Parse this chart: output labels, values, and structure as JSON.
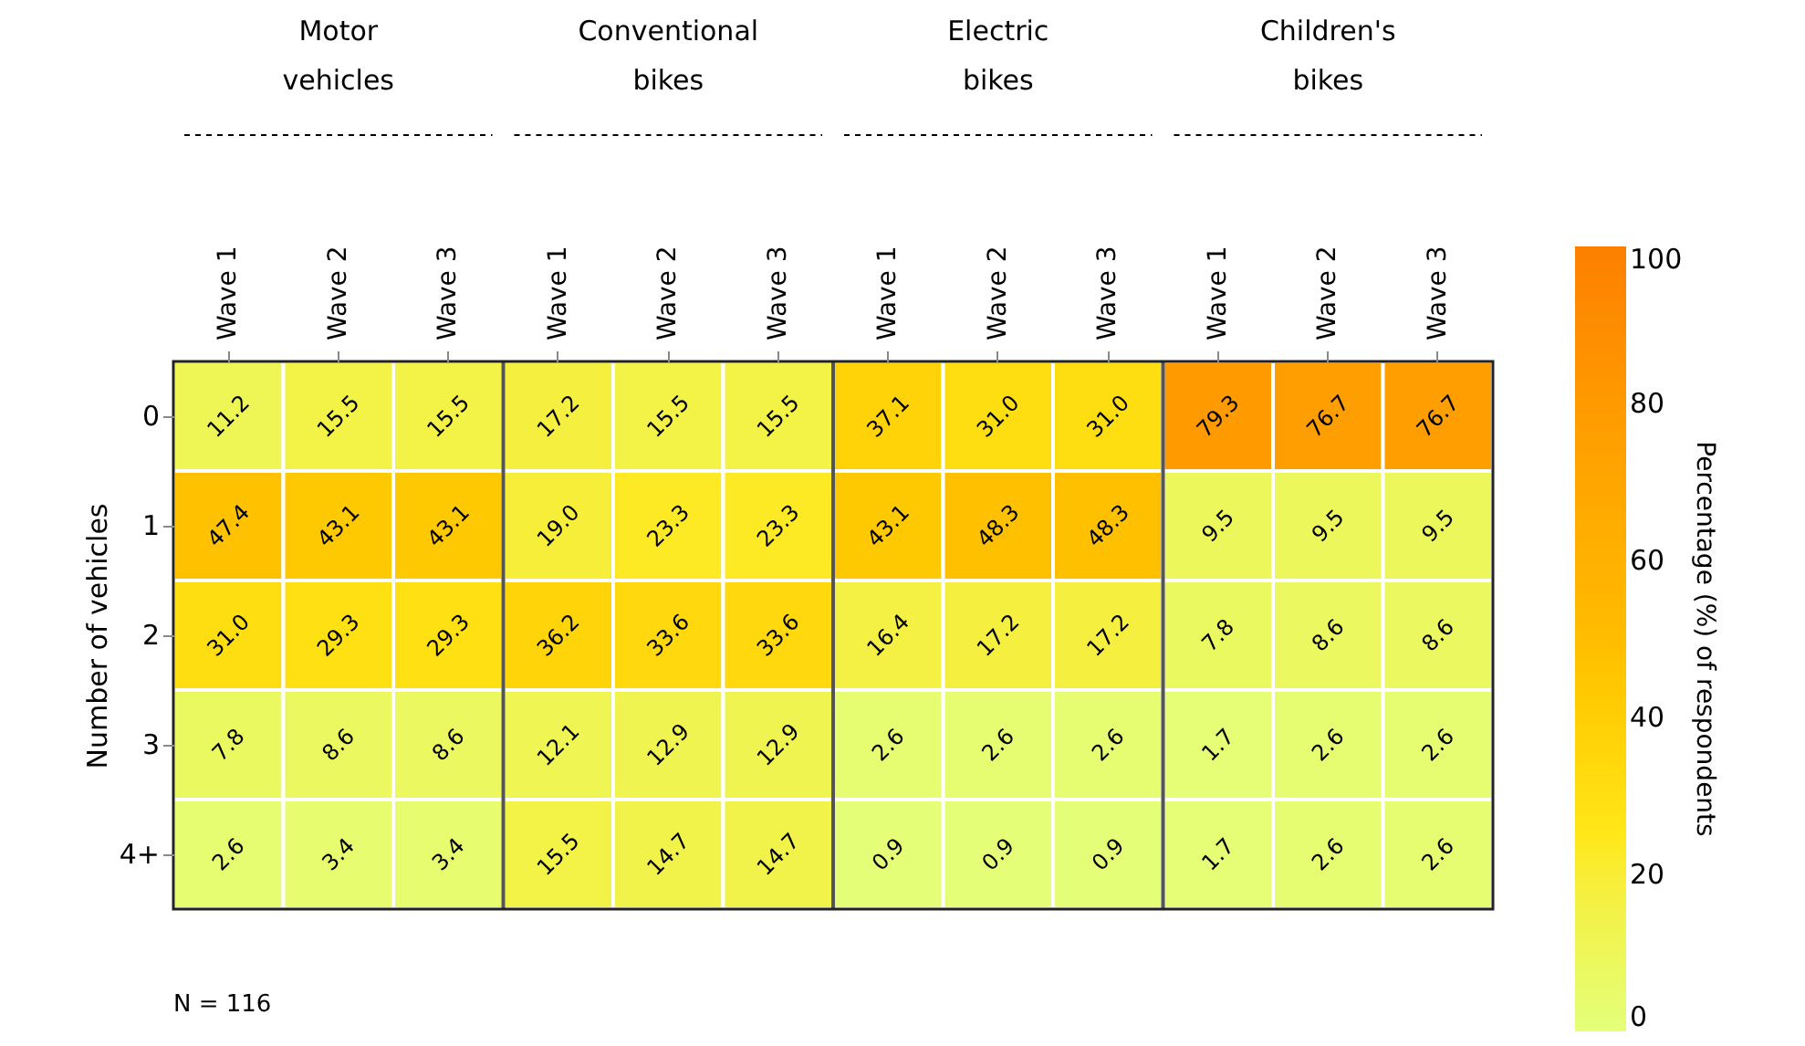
{
  "chart_data": {
    "type": "heatmap",
    "ylabel": "Number of vehicles",
    "clabel": "Percentage (%) of respondents",
    "categories": [
      "Wave 1",
      "Wave 2",
      "Wave 3",
      "Wave 1",
      "Wave 2",
      "Wave 3",
      "Wave 1",
      "Wave 2",
      "Wave 3",
      "Wave 1",
      "Wave 2",
      "Wave 3"
    ],
    "y_categories": [
      "0",
      "1",
      "2",
      "3",
      "4+"
    ],
    "cells": [
      [
        11.2,
        15.5,
        15.5,
        17.2,
        15.5,
        15.5,
        37.1,
        31.0,
        31.0,
        79.3,
        76.7,
        76.7
      ],
      [
        47.4,
        43.1,
        43.1,
        19.0,
        23.3,
        23.3,
        43.1,
        48.3,
        48.3,
        9.5,
        9.5,
        9.5
      ],
      [
        31.0,
        29.3,
        29.3,
        36.2,
        33.6,
        33.6,
        16.4,
        17.2,
        17.2,
        7.8,
        8.6,
        8.6
      ],
      [
        7.8,
        8.6,
        8.6,
        12.1,
        12.9,
        12.9,
        2.6,
        2.6,
        2.6,
        1.7,
        2.6,
        2.6
      ],
      [
        2.6,
        3.4,
        3.4,
        15.5,
        14.7,
        14.7,
        0.9,
        0.9,
        0.9,
        1.7,
        2.6,
        2.6
      ]
    ],
    "cell_labels": [
      [
        "11.2",
        "15.5",
        "15.5",
        "17.2",
        "15.5",
        "15.5",
        "37.1",
        "31.0",
        "31.0",
        "79.3",
        "76.7",
        "76.7"
      ],
      [
        "47.4",
        "43.1",
        "43.1",
        "19.0",
        "23.3",
        "23.3",
        "43.1",
        "48.3",
        "48.3",
        "9.5",
        "9.5",
        "9.5"
      ],
      [
        "31.0",
        "29.3",
        "29.3",
        "36.2",
        "33.6",
        "33.6",
        "16.4",
        "17.2",
        "17.2",
        "7.8",
        "8.6",
        "8.6"
      ],
      [
        "7.8",
        "8.6",
        "8.6",
        "12.1",
        "12.9",
        "12.9",
        "2.6",
        "2.6",
        "2.6",
        "1.7",
        "2.6",
        "2.6"
      ],
      [
        "2.6",
        "3.4",
        "3.4",
        "15.5",
        "14.7",
        "14.7",
        "0.9",
        "0.9",
        "0.9",
        "1.7",
        "2.6",
        "2.6"
      ]
    ],
    "clim": [
      0,
      100
    ],
    "cticks": [
      0,
      20,
      40,
      60,
      80,
      100
    ],
    "colors": [
      "#e4ff7a",
      "#ffe81a",
      "#ffbd00",
      "#ffa000",
      "#fc7f00"
    ],
    "annotations": [
      "Motor\nvehicles",
      "Conventional\nbikes",
      "Electric\nbikes",
      "Children's\nbikes",
      "N = 116"
    ]
  }
}
